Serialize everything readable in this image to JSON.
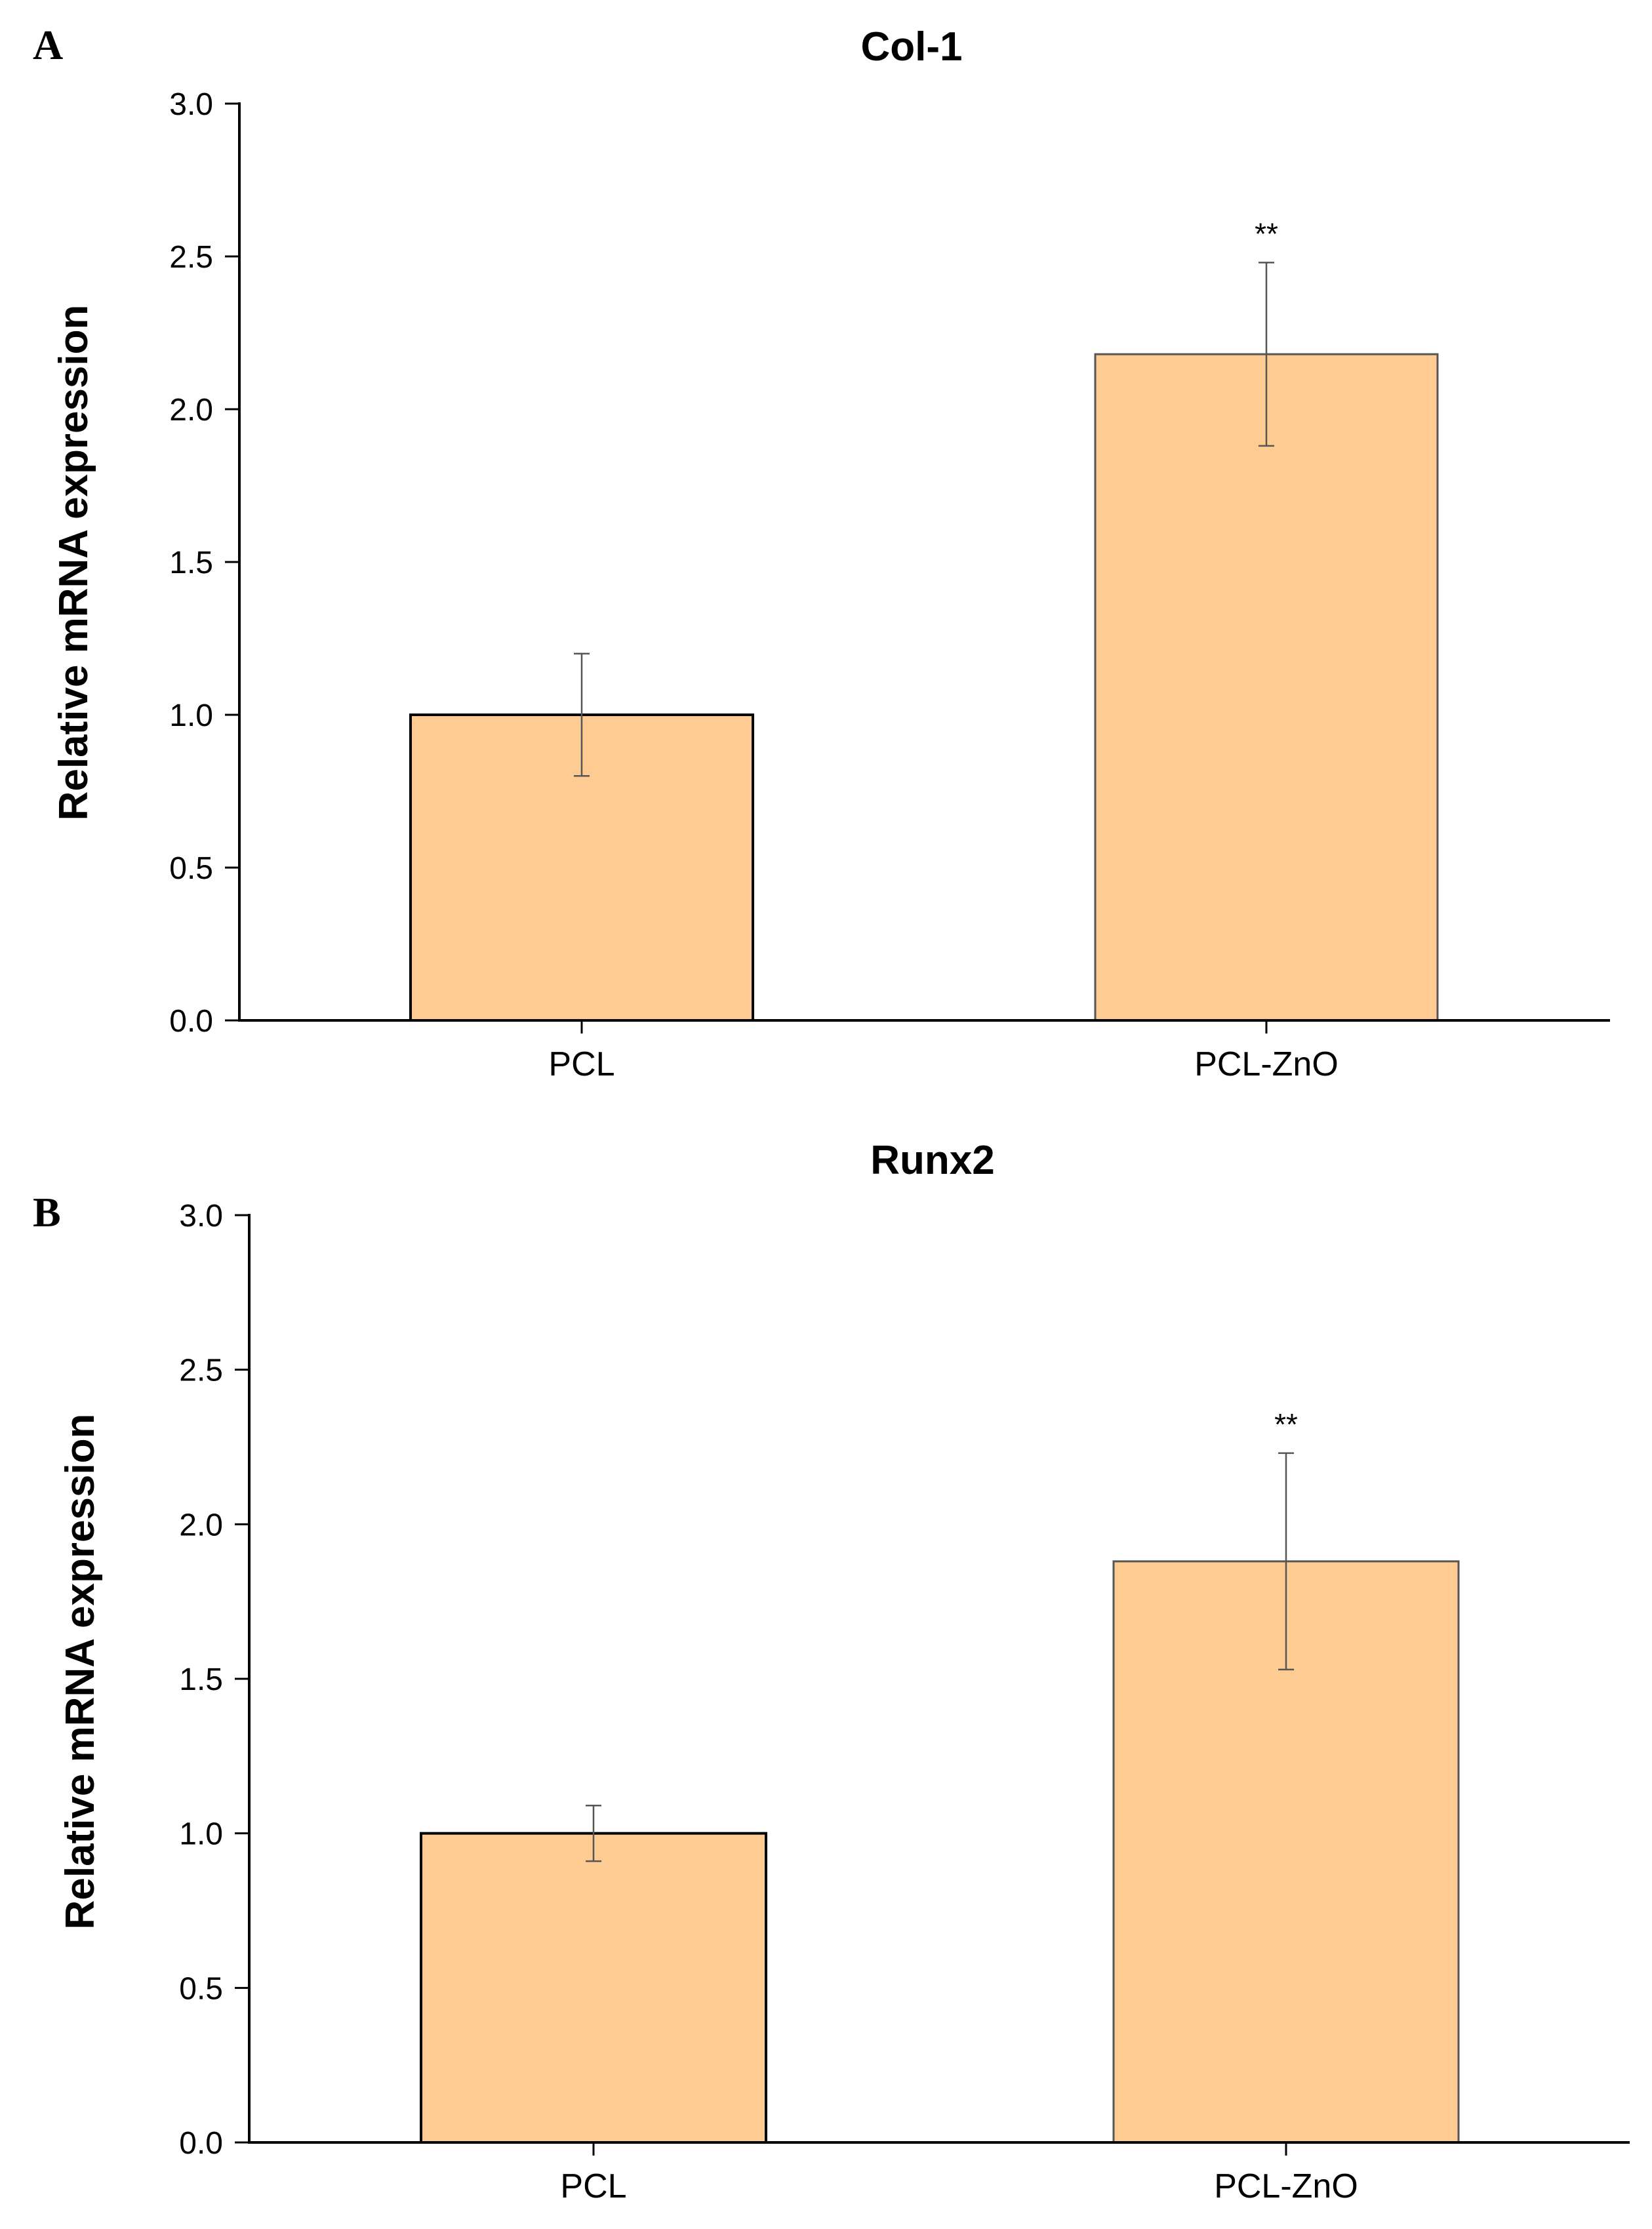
{
  "chart_data": [
    {
      "panel": "A",
      "type": "bar",
      "title": "Col-1",
      "xlabel": "",
      "ylabel": "Relative mRNA expression",
      "categories": [
        "PCL",
        "PCL-ZnO"
      ],
      "values": [
        1.0,
        2.18
      ],
      "errors": [
        0.2,
        0.3
      ],
      "significance": [
        "",
        "**"
      ],
      "ylim": [
        0,
        3.0
      ],
      "yticks": [
        "0.0",
        "0.5",
        "1.0",
        "1.5",
        "2.0",
        "2.5",
        "3.0"
      ],
      "bar_color": "#FECC93",
      "grid": false
    },
    {
      "panel": "B",
      "type": "bar",
      "title": "Runx2",
      "xlabel": "",
      "ylabel": "Relative mRNA expression",
      "categories": [
        "PCL",
        "PCL-ZnO"
      ],
      "values": [
        1.0,
        1.88
      ],
      "errors": [
        0.09,
        0.35
      ],
      "significance": [
        "",
        "**"
      ],
      "ylim": [
        0,
        3.0
      ],
      "yticks": [
        "0.0",
        "0.5",
        "1.0",
        "1.5",
        "2.0",
        "2.5",
        "3.0"
      ],
      "bar_color": "#FECC93",
      "grid": false
    }
  ]
}
